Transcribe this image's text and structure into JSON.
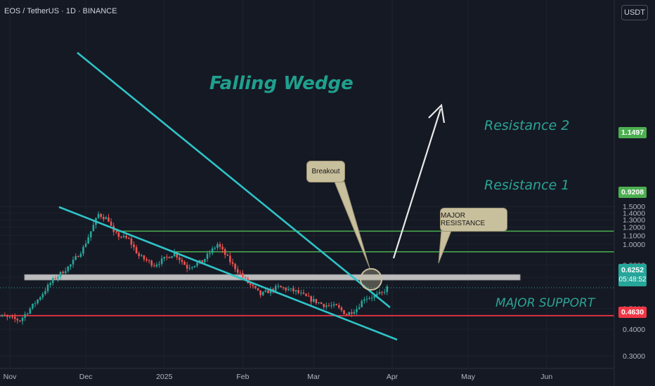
{
  "header": {
    "symbol_line": "EOS / TetherUS · 1D · BINANCE",
    "currency_button": "USDT"
  },
  "annotations": {
    "pattern_title": "Falling Wedge",
    "resistance_2": "Resistance 2",
    "resistance_1": "Resistance 1",
    "major_support": "MAJOR SUPPORT",
    "breakout": "Breakout",
    "major_resistance": "MAJOR RESISTANCE"
  },
  "price_tags": {
    "resistance_2": "1.1497",
    "resistance_1": "0.9208",
    "current": "0.6252",
    "countdown": "05:48:52",
    "support": "0.4630"
  },
  "colors": {
    "background": "#151924",
    "up_candle": "#26a69a",
    "down_candle": "#ef5350",
    "wedge_line": "#2ec4c7",
    "resistance_line": "#4caf50",
    "support_line": "#f23645",
    "zone": "#d9d9d9"
  },
  "chart_data": {
    "type": "candlestick",
    "title": "EOS / TetherUS · 1D · BINANCE",
    "y_scale": "log",
    "y_ticks": [
      "0.3000",
      "0.4000",
      "0.5000",
      "0.7000",
      "0.8000",
      "1.0000",
      "1.1000",
      "1.2000",
      "1.3000",
      "1.4000",
      "1.5000"
    ],
    "x_ticks": [
      "Nov",
      "Dec",
      "2025",
      "Feb",
      "Mar",
      "Apr",
      "May",
      "Jun"
    ],
    "ylim": [
      0.28,
      1.62
    ],
    "levels": {
      "resistance_2": 1.1497,
      "resistance_1": 0.9208,
      "support": 0.463,
      "current": 0.6252,
      "major_resistance_zone": [
        0.68,
        0.72
      ]
    },
    "trend": [
      [
        "2024-10-25",
        0.47
      ],
      [
        "2024-11-05",
        0.44
      ],
      [
        "2024-11-12",
        0.55
      ],
      [
        "2024-11-18",
        0.68
      ],
      [
        "2024-11-25",
        0.8
      ],
      [
        "2024-11-30",
        0.96
      ],
      [
        "2024-12-03",
        1.15
      ],
      [
        "2024-12-06",
        1.38
      ],
      [
        "2024-12-10",
        1.3
      ],
      [
        "2024-12-12",
        1.12
      ],
      [
        "2024-12-18",
        1.05
      ],
      [
        "2024-12-22",
        0.88
      ],
      [
        "2024-12-28",
        0.8
      ],
      [
        "2025-01-05",
        0.91
      ],
      [
        "2025-01-10",
        0.78
      ],
      [
        "2025-01-16",
        0.83
      ],
      [
        "2025-01-22",
        1.0
      ],
      [
        "2025-01-28",
        0.8
      ],
      [
        "2025-02-03",
        0.66
      ],
      [
        "2025-02-08",
        0.58
      ],
      [
        "2025-02-15",
        0.63
      ],
      [
        "2025-02-22",
        0.6
      ],
      [
        "2025-02-28",
        0.55
      ],
      [
        "2025-03-05",
        0.52
      ],
      [
        "2025-03-10",
        0.51
      ],
      [
        "2025-03-14",
        0.47
      ],
      [
        "2025-03-18",
        0.5
      ],
      [
        "2025-03-21",
        0.56
      ],
      [
        "2025-03-25",
        0.57
      ],
      [
        "2025-03-28",
        0.59
      ],
      [
        "2025-03-30",
        0.6252
      ]
    ]
  }
}
